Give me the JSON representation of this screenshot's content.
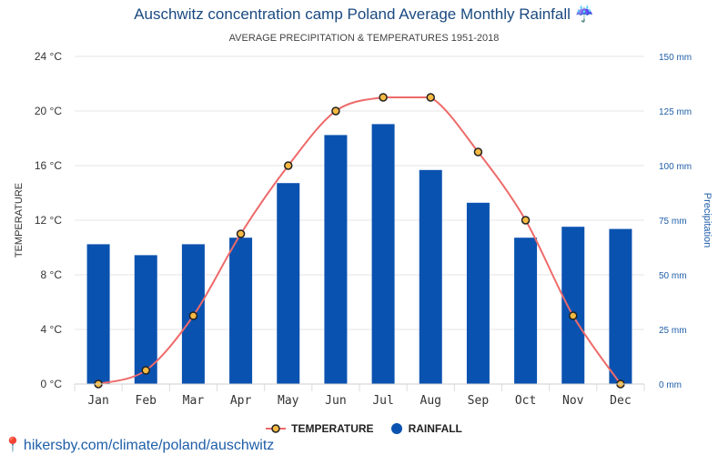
{
  "title": "Auschwitz concentration camp Poland Average Monthly Rainfall ☔",
  "subtitle": "AVERAGE PRECIPITATION & TEMPERATURES 1951-2018",
  "footer": "hikersby.com/climate/poland/auschwitz",
  "colors": {
    "bar": "#0a52b0",
    "line": "#ee6a6a",
    "marker_fill": "#f5b942",
    "marker_stroke": "#222222",
    "left_axis_text": "#333333",
    "right_axis_text": "#1f5ea8"
  },
  "chart_data": {
    "type": "bar",
    "categories": [
      "Jan",
      "Feb",
      "Mar",
      "Apr",
      "May",
      "Jun",
      "Jul",
      "Aug",
      "Sep",
      "Oct",
      "Nov",
      "Dec"
    ],
    "series": [
      {
        "name": "TEMPERATURE",
        "type": "line",
        "axis": "left",
        "values": [
          0,
          1,
          5,
          11,
          16,
          20,
          21,
          21,
          17,
          12,
          5,
          0
        ]
      },
      {
        "name": "RAINFALL",
        "type": "bar",
        "axis": "right",
        "values": [
          64,
          59,
          64,
          67,
          92,
          114,
          119,
          98,
          83,
          67,
          72,
          71
        ]
      }
    ],
    "ylabel_left": "TEMPERATURE",
    "ylabel_right": "Precipitation",
    "ylim_left": [
      0,
      24
    ],
    "ylim_right": [
      0,
      150
    ],
    "left_ticks": [
      {
        "value": 0,
        "label": "0 °C"
      },
      {
        "value": 4,
        "label": "4 °C"
      },
      {
        "value": 8,
        "label": "8 °C"
      },
      {
        "value": 12,
        "label": "12 °C"
      },
      {
        "value": 16,
        "label": "16 °C"
      },
      {
        "value": 20,
        "label": "20 °C"
      },
      {
        "value": 24,
        "label": "24 °C"
      }
    ],
    "right_ticks": [
      {
        "value": 0,
        "label": "0 mm"
      },
      {
        "value": 25,
        "label": "25 mm"
      },
      {
        "value": 50,
        "label": "50 mm"
      },
      {
        "value": 75,
        "label": "75 mm"
      },
      {
        "value": 100,
        "label": "100 mm"
      },
      {
        "value": 125,
        "label": "125 mm"
      },
      {
        "value": 150,
        "label": "150 mm"
      }
    ],
    "grid": true,
    "legend": "bottom"
  }
}
